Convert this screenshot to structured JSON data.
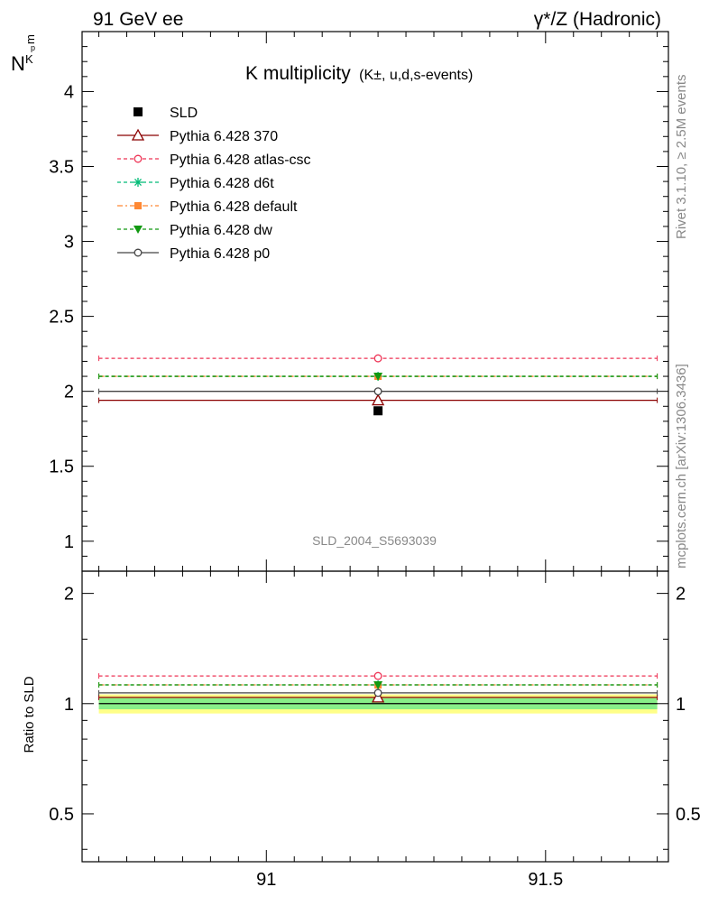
{
  "header": {
    "left": "91 GeV ee",
    "right": "γ*/Z (Hadronic)"
  },
  "side": {
    "rivet": "Rivet 3.1.10, ≥ 2.5M events",
    "mcplots": "mcplots.cern.ch [arXiv:1306.3436]"
  },
  "watermark": "SLD_2004_S5693039",
  "chart_data": [
    {
      "type": "scatter",
      "title": "K multiplicity",
      "title_suffix": "(K±, u,d,s-events)",
      "ylabel_main": "N",
      "ylabel_sub": "K",
      "ylabel_sup": "p",
      "ylabel_m": "m",
      "xlim": [
        90.67,
        91.72
      ],
      "ylim": [
        0.8,
        4.4
      ],
      "log_y": false,
      "yticks": [
        1,
        1.5,
        2,
        2.5,
        3,
        3.5,
        4
      ],
      "ytick_labels": [
        "1",
        "1.5",
        "2",
        "2.5",
        "3",
        "3.5",
        "4"
      ],
      "xticks": [
        91,
        91.5
      ],
      "legend_position": "top-left",
      "data": {
        "name": "SLD",
        "x": 91.2,
        "y": 1.87,
        "color": "#000000"
      },
      "series": [
        {
          "name": "Pythia 6.428 370",
          "y": 1.94,
          "x_range": [
            90.7,
            91.7
          ],
          "color": "#8b0000",
          "dash": "none",
          "marker": "triangle-open"
        },
        {
          "name": "Pythia 6.428 atlas-csc",
          "y": 2.22,
          "x_range": [
            90.7,
            91.7
          ],
          "color": "#ee3355",
          "dash": "4,3",
          "marker": "circle-open"
        },
        {
          "name": "Pythia 6.428 d6t",
          "y": 2.1,
          "x_range": [
            90.7,
            91.7
          ],
          "color": "#00bb77",
          "dash": "4,3",
          "marker": "star"
        },
        {
          "name": "Pythia 6.428 default",
          "y": 2.1,
          "x_range": [
            90.7,
            91.7
          ],
          "color": "#ff8833",
          "dash": "6,3,2,3",
          "marker": "square"
        },
        {
          "name": "Pythia 6.428 dw",
          "y": 2.1,
          "x_range": [
            90.7,
            91.7
          ],
          "color": "#119911",
          "dash": "4,3",
          "marker": "triangle-down"
        },
        {
          "name": "Pythia 6.428 p0",
          "y": 2.0,
          "x_range": [
            90.7,
            91.7
          ],
          "color": "#444444",
          "dash": "none",
          "marker": "circle-open"
        }
      ]
    },
    {
      "type": "scatter",
      "ylabel": "Ratio to SLD",
      "xlim": [
        90.67,
        91.72
      ],
      "ylim": [
        0.37,
        2.3
      ],
      "log_y": true,
      "yticks": [
        0.5,
        1,
        2
      ],
      "ytick_labels": [
        "0.5",
        "1",
        "2"
      ],
      "xticks": [
        91,
        91.5
      ],
      "xtick_labels": [
        "91",
        "91.5"
      ],
      "bands": [
        {
          "lo": 0.94,
          "hi": 1.06,
          "color": "#ffff88"
        },
        {
          "lo": 0.965,
          "hi": 1.035,
          "color": "#88ee88"
        }
      ],
      "series": [
        {
          "name": "Pythia 6.428 370",
          "y": 1.04,
          "color": "#8b0000",
          "dash": "none",
          "marker": "triangle-open"
        },
        {
          "name": "Pythia 6.428 atlas-csc",
          "y": 1.19,
          "color": "#ee3355",
          "dash": "4,3",
          "marker": "circle-open"
        },
        {
          "name": "Pythia 6.428 d6t",
          "y": 1.125,
          "color": "#00bb77",
          "dash": "4,3",
          "marker": "star"
        },
        {
          "name": "Pythia 6.428 default",
          "y": 1.125,
          "color": "#ff8833",
          "dash": "6,3,2,3",
          "marker": "square"
        },
        {
          "name": "Pythia 6.428 dw",
          "y": 1.125,
          "color": "#119911",
          "dash": "4,3",
          "marker": "triangle-down"
        },
        {
          "name": "Pythia 6.428 p0",
          "y": 1.07,
          "color": "#444444",
          "dash": "none",
          "marker": "circle-open"
        }
      ]
    }
  ]
}
